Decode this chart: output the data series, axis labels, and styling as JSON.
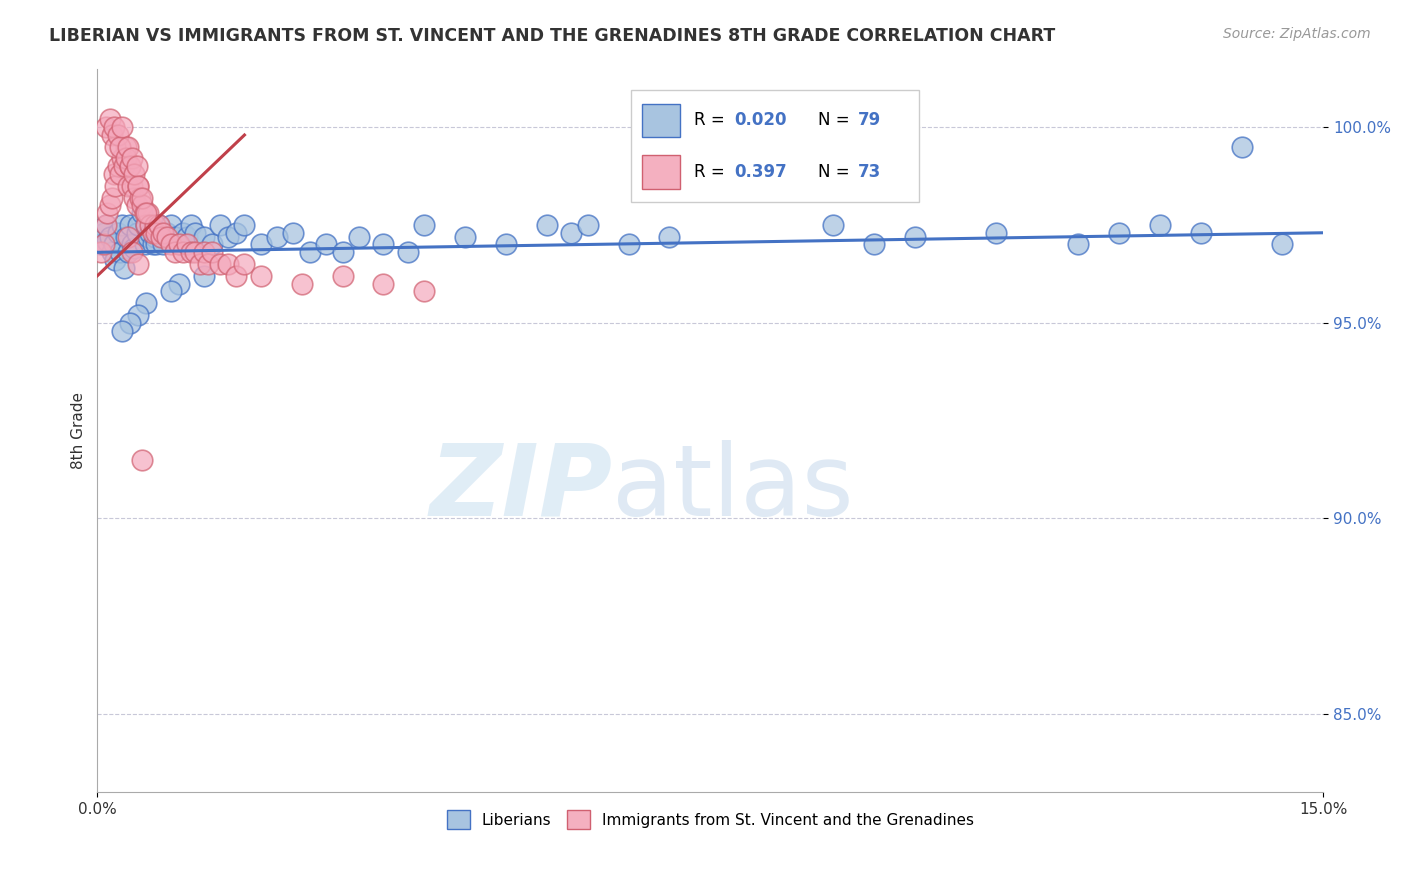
{
  "title": "LIBERIAN VS IMMIGRANTS FROM ST. VINCENT AND THE GRENADINES 8TH GRADE CORRELATION CHART",
  "source": "Source: ZipAtlas.com",
  "ylabel": "8th Grade",
  "xlim": [
    0.0,
    15.0
  ],
  "ylim": [
    83.0,
    101.5
  ],
  "yticks": [
    85.0,
    90.0,
    95.0,
    100.0
  ],
  "yticklabels": [
    "85.0%",
    "90.0%",
    "95.0%",
    "100.0%"
  ],
  "legend_color1": "#a8c4e0",
  "legend_color2": "#f4b0c0",
  "dot_color_blue": "#a8c4e0",
  "dot_color_pink": "#f4a8bc",
  "line_color_blue": "#4472c4",
  "line_color_pink": "#c0404a",
  "blue_trend_x": [
    0.0,
    15.0
  ],
  "blue_trend_y": [
    96.8,
    97.3
  ],
  "pink_trend_x": [
    0.0,
    1.8
  ],
  "pink_trend_y": [
    96.2,
    99.8
  ],
  "blue_x": [
    0.05,
    0.08,
    0.1,
    0.12,
    0.15,
    0.18,
    0.2,
    0.22,
    0.25,
    0.28,
    0.3,
    0.32,
    0.35,
    0.38,
    0.4,
    0.42,
    0.45,
    0.48,
    0.5,
    0.55,
    0.58,
    0.6,
    0.62,
    0.65,
    0.68,
    0.7,
    0.72,
    0.75,
    0.78,
    0.8,
    0.85,
    0.9,
    0.95,
    1.0,
    1.05,
    1.1,
    1.15,
    1.2,
    1.3,
    1.4,
    1.5,
    1.6,
    1.7,
    1.8,
    2.0,
    2.2,
    2.4,
    2.6,
    2.8,
    3.0,
    3.2,
    3.5,
    3.8,
    4.0,
    4.5,
    5.0,
    5.5,
    5.8,
    6.0,
    6.5,
    7.0,
    8.0,
    9.0,
    9.5,
    10.0,
    11.0,
    12.0,
    12.5,
    13.0,
    13.5,
    14.0,
    14.5,
    1.3,
    1.0,
    0.9,
    0.6,
    0.5,
    0.4,
    0.3
  ],
  "blue_y": [
    97.0,
    97.3,
    97.5,
    97.1,
    97.2,
    96.8,
    97.0,
    96.6,
    97.3,
    96.8,
    97.5,
    96.4,
    97.2,
    96.8,
    97.5,
    97.0,
    96.9,
    97.3,
    97.5,
    97.8,
    97.0,
    97.5,
    97.2,
    97.3,
    97.0,
    97.2,
    97.0,
    97.5,
    97.2,
    97.0,
    97.3,
    97.5,
    97.2,
    97.0,
    97.3,
    97.2,
    97.5,
    97.3,
    97.2,
    97.0,
    97.5,
    97.2,
    97.3,
    97.5,
    97.0,
    97.2,
    97.3,
    96.8,
    97.0,
    96.8,
    97.2,
    97.0,
    96.8,
    97.5,
    97.2,
    97.0,
    97.5,
    97.3,
    97.5,
    97.0,
    97.2,
    99.2,
    97.5,
    97.0,
    97.2,
    97.3,
    97.0,
    97.3,
    97.5,
    97.3,
    99.5,
    97.0,
    96.2,
    96.0,
    95.8,
    95.5,
    95.2,
    95.0,
    94.8
  ],
  "pink_x": [
    0.05,
    0.08,
    0.1,
    0.12,
    0.15,
    0.18,
    0.2,
    0.22,
    0.25,
    0.28,
    0.3,
    0.32,
    0.35,
    0.38,
    0.4,
    0.42,
    0.45,
    0.48,
    0.5,
    0.52,
    0.55,
    0.58,
    0.6,
    0.62,
    0.65,
    0.68,
    0.7,
    0.72,
    0.75,
    0.78,
    0.8,
    0.85,
    0.9,
    0.95,
    1.0,
    1.05,
    1.1,
    1.15,
    1.2,
    1.25,
    1.3,
    1.35,
    1.4,
    1.5,
    1.6,
    1.7,
    1.8,
    2.0,
    2.5,
    3.0,
    3.5,
    4.0,
    0.1,
    0.15,
    0.18,
    0.2,
    0.22,
    0.25,
    0.28,
    0.3,
    0.35,
    0.38,
    0.4,
    0.42,
    0.45,
    0.48,
    0.5,
    0.55,
    0.6,
    0.38,
    0.42,
    0.5,
    0.55
  ],
  "pink_y": [
    96.8,
    97.0,
    97.5,
    97.8,
    98.0,
    98.2,
    98.8,
    98.5,
    99.0,
    98.8,
    99.2,
    99.0,
    99.5,
    98.5,
    99.0,
    98.5,
    98.2,
    98.0,
    98.5,
    98.2,
    98.0,
    97.8,
    97.5,
    97.8,
    97.5,
    97.3,
    97.5,
    97.3,
    97.5,
    97.2,
    97.3,
    97.2,
    97.0,
    96.8,
    97.0,
    96.8,
    97.0,
    96.8,
    96.8,
    96.5,
    96.8,
    96.5,
    96.8,
    96.5,
    96.5,
    96.2,
    96.5,
    96.2,
    96.0,
    96.2,
    96.0,
    95.8,
    100.0,
    100.2,
    99.8,
    100.0,
    99.5,
    99.8,
    99.5,
    100.0,
    99.2,
    99.5,
    99.0,
    99.2,
    98.8,
    99.0,
    98.5,
    98.2,
    97.8,
    97.2,
    96.8,
    96.5,
    91.5
  ]
}
